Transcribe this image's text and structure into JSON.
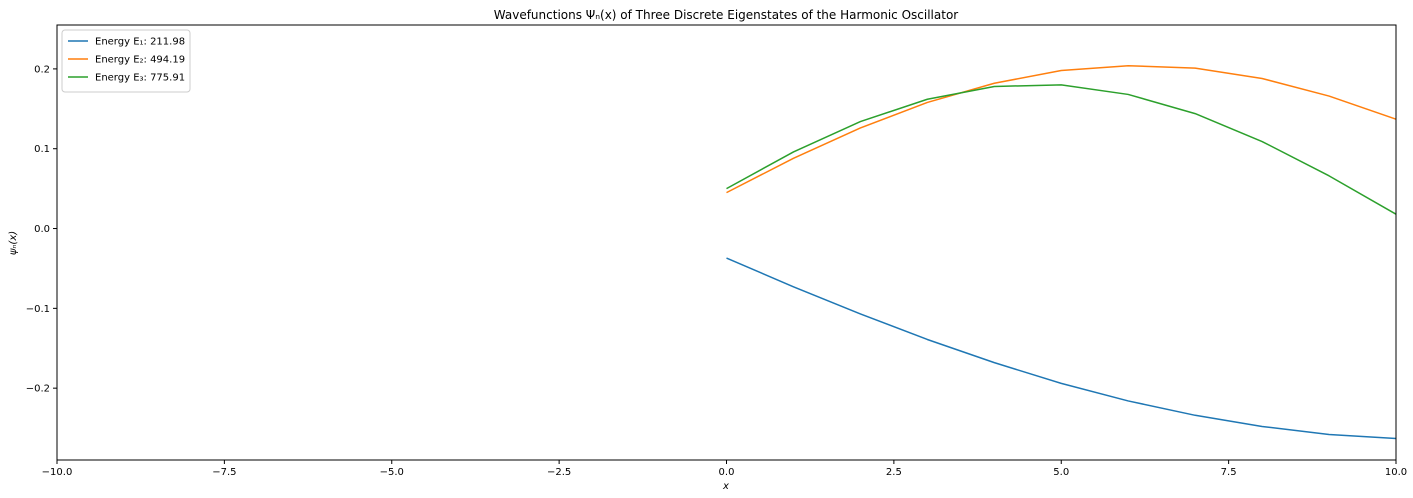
{
  "chart_data": {
    "type": "line",
    "title": "Wavefunctions Ψₙ(x) of Three Discrete Eigenstates of the Harmonic Oscillator",
    "xlabel": "x",
    "ylabel": "ψₙ(x)",
    "xlim": [
      -10,
      10
    ],
    "ylim": [
      -0.29,
      0.255
    ],
    "xticks": [
      -10,
      -7.5,
      -5,
      -2.5,
      0,
      2.5,
      5,
      7.5,
      10
    ],
    "xtick_labels": [
      "−10.0",
      "−7.5",
      "−5.0",
      "−2.5",
      "0.0",
      "2.5",
      "5.0",
      "7.5",
      "10.0"
    ],
    "yticks": [
      -0.2,
      -0.1,
      0.0,
      0.1,
      0.2
    ],
    "ytick_labels": [
      "−0.2",
      "−0.1",
      "0.0",
      "0.1",
      "0.2"
    ],
    "grid": false,
    "legend_position": "top-left",
    "x": [
      0,
      1,
      2,
      3,
      4,
      5,
      6,
      7,
      8,
      9,
      10
    ],
    "series": [
      {
        "name": "Energy E₁: 211.98",
        "color": "#1f77b4",
        "values": [
          -0.037,
          -0.073,
          -0.107,
          -0.139,
          -0.168,
          -0.194,
          -0.216,
          -0.234,
          -0.248,
          -0.258,
          -0.263
        ]
      },
      {
        "name": "Energy E₂: 494.19",
        "color": "#ff7f0e",
        "values": [
          0.045,
          0.088,
          0.126,
          0.158,
          0.182,
          0.198,
          0.204,
          0.201,
          0.188,
          0.166,
          0.137
        ]
      },
      {
        "name": "Energy E₃: 775.91",
        "color": "#2ca02c",
        "values": [
          0.05,
          0.096,
          0.134,
          0.162,
          0.178,
          0.18,
          0.168,
          0.144,
          0.109,
          0.066,
          0.018
        ]
      }
    ]
  }
}
